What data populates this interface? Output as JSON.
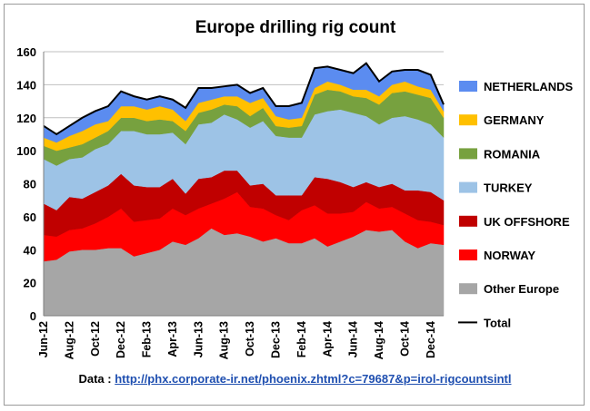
{
  "chart_data": {
    "type": "area",
    "stacked": true,
    "title": "Europe drilling rig count",
    "xlabel": "",
    "ylabel": "",
    "ylim": [
      0,
      160
    ],
    "yticks": [
      0,
      20,
      40,
      60,
      80,
      100,
      120,
      140,
      160
    ],
    "grid": true,
    "legend_position": "right",
    "x_tick_labels": [
      "Jun-12",
      "Aug-12",
      "Oct-12",
      "Dec-12",
      "Feb-13",
      "Apr-13",
      "Jun-13",
      "Aug-13",
      "Oct-13",
      "Dec-13",
      "Feb-14",
      "Apr-14",
      "Jun-14",
      "Aug-14",
      "Oct-14",
      "Dec-14"
    ],
    "x": [
      "Jun-12",
      "Jul-12",
      "Aug-12",
      "Sep-12",
      "Oct-12",
      "Nov-12",
      "Dec-12",
      "Jan-13",
      "Feb-13",
      "Mar-13",
      "Apr-13",
      "May-13",
      "Jun-13",
      "Jul-13",
      "Aug-13",
      "Sep-13",
      "Oct-13",
      "Nov-13",
      "Dec-13",
      "Jan-14",
      "Feb-14",
      "Mar-14",
      "Apr-14",
      "May-14",
      "Jun-14",
      "Jul-14",
      "Aug-14",
      "Sep-14",
      "Oct-14",
      "Nov-14",
      "Dec-14",
      "Jan-15"
    ],
    "series": [
      {
        "name": "Other Europe",
        "color": "#a6a6a6",
        "values": [
          33,
          34,
          39,
          40,
          40,
          41,
          41,
          36,
          38,
          40,
          45,
          43,
          47,
          53,
          49,
          50,
          48,
          45,
          47,
          44,
          44,
          47,
          42,
          45,
          48,
          52,
          51,
          52,
          45,
          41,
          44,
          43
        ]
      },
      {
        "name": "NORWAY",
        "color": "#ff0000",
        "values": [
          16,
          14,
          13,
          13,
          16,
          19,
          24,
          21,
          20,
          19,
          20,
          18,
          18,
          15,
          22,
          25,
          18,
          20,
          14,
          14,
          20,
          20,
          20,
          17,
          15,
          17,
          14,
          14,
          17,
          17,
          13,
          12
        ]
      },
      {
        "name": "UK OFFSHORE",
        "color": "#c00000",
        "values": [
          19,
          16,
          20,
          18,
          19,
          19,
          21,
          22,
          20,
          19,
          18,
          13,
          18,
          16,
          17,
          13,
          13,
          15,
          12,
          15,
          9,
          17,
          21,
          19,
          15,
          12,
          13,
          14,
          14,
          18,
          18,
          15
        ]
      },
      {
        "name": "TURKEY",
        "color": "#9dc3e6",
        "values": [
          27,
          27,
          23,
          25,
          26,
          25,
          26,
          33,
          32,
          32,
          28,
          30,
          33,
          33,
          34,
          31,
          35,
          38,
          36,
          35,
          35,
          38,
          41,
          44,
          45,
          40,
          38,
          40,
          45,
          43,
          41,
          38
        ]
      },
      {
        "name": "ROMANIA",
        "color": "#77a13f",
        "values": [
          8,
          9,
          7,
          8,
          7,
          8,
          8,
          8,
          8,
          9,
          7,
          8,
          7,
          8,
          6,
          8,
          7,
          8,
          6,
          6,
          7,
          12,
          13,
          11,
          10,
          11,
          12,
          15,
          15,
          15,
          16,
          12
        ]
      },
      {
        "name": "GERMANY",
        "color": "#ffc000",
        "values": [
          5,
          5,
          7,
          8,
          8,
          6,
          7,
          7,
          7,
          8,
          7,
          6,
          6,
          6,
          5,
          6,
          8,
          6,
          6,
          5,
          5,
          4,
          5,
          4,
          4,
          5,
          5,
          5,
          6,
          5,
          5,
          4
        ]
      },
      {
        "name": "NETHERLANDS",
        "color": "#5b8cf0",
        "values": [
          7,
          5,
          6,
          8,
          8,
          9,
          9,
          6,
          6,
          6,
          6,
          8,
          9,
          7,
          6,
          7,
          6,
          6,
          6,
          8,
          9,
          12,
          9,
          9,
          10,
          16,
          9,
          8,
          7,
          10,
          9,
          4
        ]
      }
    ],
    "total": {
      "name": "Total",
      "color": "#000000",
      "values": [
        115,
        110,
        115,
        120,
        124,
        127,
        136,
        133,
        131,
        133,
        131,
        126,
        138,
        138,
        139,
        140,
        135,
        138,
        127,
        127,
        129,
        150,
        151,
        149,
        147,
        153,
        142,
        148,
        149,
        149,
        146,
        128
      ]
    }
  },
  "legend": [
    {
      "label": "NETHERLANDS",
      "color": "#5b8cf0",
      "kind": "swatch"
    },
    {
      "label": "GERMANY",
      "color": "#ffc000",
      "kind": "swatch"
    },
    {
      "label": "ROMANIA",
      "color": "#77a13f",
      "kind": "swatch"
    },
    {
      "label": "TURKEY",
      "color": "#9dc3e6",
      "kind": "swatch"
    },
    {
      "label": "UK OFFSHORE",
      "color": "#c00000",
      "kind": "swatch"
    },
    {
      "label": "NORWAY",
      "color": "#ff0000",
      "kind": "swatch"
    },
    {
      "label": "Other Europe",
      "color": "#a6a6a6",
      "kind": "swatch"
    },
    {
      "label": "Total",
      "color": "#000000",
      "kind": "line"
    }
  ],
  "source": {
    "prefix": "Data : ",
    "link_text": "http://phx.corporate-ir.net/phoenix.zhtml?c=79687&p=irol-rigcountsintl"
  }
}
